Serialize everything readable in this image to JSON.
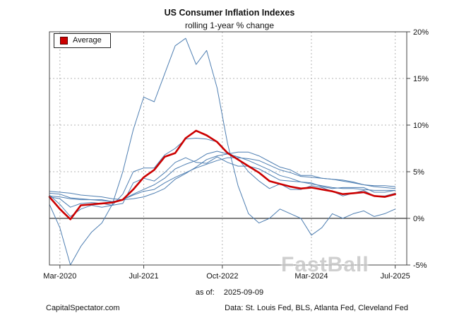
{
  "watermark": {
    "text": "FastBall"
  },
  "footer": {
    "as_of_label": "as of:",
    "as_of_date": "2025-09-09",
    "site": "CapitalSpectator.com",
    "source": "Data: St. Louis Fed, BLS, Atlanta Fed, Cleveland Fed"
  },
  "chart_data": {
    "type": "line",
    "title": "US Consumer Inflation Indexes",
    "subtitle": "rolling 1-year % change",
    "ylim": [
      -5,
      20
    ],
    "grid": true,
    "legend_position": "top-left",
    "legend": [
      {
        "label": "Average",
        "color": "#cc0000"
      }
    ],
    "colors": {
      "series_blue": "#4f7fb2",
      "average_red": "#cc0000",
      "grid": "#b4b4b4",
      "axis": "#444444",
      "zero_line": "#333333",
      "tick_text": "#111111"
    },
    "x": [
      "2020-01",
      "2020-03",
      "2020-05",
      "2020-07",
      "2020-09",
      "2020-11",
      "2021-01",
      "2021-03",
      "2021-05",
      "2021-07",
      "2021-09",
      "2021-11",
      "2022-01",
      "2022-03",
      "2022-05",
      "2022-07",
      "2022-09",
      "2022-11",
      "2023-01",
      "2023-03",
      "2023-05",
      "2023-07",
      "2023-09",
      "2023-11",
      "2024-01",
      "2024-03",
      "2024-05",
      "2024-07",
      "2024-09",
      "2024-11",
      "2025-01",
      "2025-03",
      "2025-05",
      "2025-07"
    ],
    "x_ticks": [
      {
        "label": "Mar-2020",
        "pos": 1
      },
      {
        "label": "Jul-2021",
        "pos": 9
      },
      {
        "label": "Oct-2022",
        "pos": 16.5
      },
      {
        "label": "Mar-2024",
        "pos": 25
      },
      {
        "label": "Jul-2025",
        "pos": 33
      }
    ],
    "y_ticks": [
      {
        "label": "20%",
        "value": 20
      },
      {
        "label": "15%",
        "value": 15
      },
      {
        "label": "10%",
        "value": 10
      },
      {
        "label": "5%",
        "value": 5
      },
      {
        "label": "0%",
        "value": 0
      },
      {
        "label": "-5%",
        "value": -5
      }
    ],
    "series": [
      {
        "name": "index-1",
        "emphasis": false,
        "values": [
          1.5,
          -1.0,
          -5.0,
          -3.0,
          -1.5,
          -0.5,
          1.5,
          5.0,
          9.5,
          13.0,
          12.5,
          15.5,
          18.5,
          19.3,
          16.5,
          18.0,
          14.0,
          8.0,
          3.5,
          0.5,
          -0.5,
          0.0,
          1.0,
          0.5,
          0.0,
          -1.8,
          -1.0,
          0.5,
          0.0,
          0.5,
          0.8,
          0.2,
          0.5,
          1.0
        ]
      },
      {
        "name": "index-2",
        "emphasis": false,
        "values": [
          2.5,
          1.5,
          0.2,
          1.0,
          1.4,
          1.2,
          1.4,
          2.6,
          5.0,
          5.4,
          5.4,
          6.8,
          7.5,
          8.5,
          8.6,
          8.5,
          8.2,
          7.1,
          6.4,
          5.0,
          4.0,
          3.2,
          3.7,
          3.1,
          3.1,
          3.5,
          3.3,
          2.9,
          2.4,
          2.7,
          3.0,
          2.4,
          2.4,
          2.7
        ]
      },
      {
        "name": "index-3",
        "emphasis": false,
        "values": [
          2.3,
          2.1,
          1.2,
          1.6,
          1.7,
          1.6,
          1.4,
          1.6,
          3.8,
          4.3,
          4.0,
          4.9,
          6.0,
          6.5,
          6.0,
          5.9,
          6.6,
          6.0,
          5.6,
          5.6,
          5.3,
          4.7,
          4.1,
          4.0,
          3.9,
          3.8,
          3.4,
          3.2,
          3.3,
          3.3,
          3.3,
          2.8,
          2.8,
          3.0
        ]
      },
      {
        "name": "index-4",
        "emphasis": false,
        "values": [
          2.9,
          2.8,
          2.7,
          2.5,
          2.4,
          2.3,
          2.1,
          2.0,
          2.1,
          2.3,
          2.7,
          3.2,
          4.2,
          4.8,
          5.5,
          6.3,
          6.7,
          6.9,
          7.1,
          7.1,
          6.7,
          6.1,
          5.5,
          5.2,
          4.6,
          4.6,
          4.3,
          4.2,
          4.1,
          3.9,
          3.6,
          3.5,
          3.5,
          3.4
        ]
      },
      {
        "name": "index-5",
        "emphasis": false,
        "values": [
          2.4,
          2.3,
          2.1,
          2.0,
          2.0,
          1.9,
          1.8,
          2.0,
          2.6,
          3.1,
          3.6,
          4.3,
          5.3,
          5.8,
          6.2,
          6.9,
          7.2,
          6.9,
          6.6,
          6.2,
          5.7,
          5.2,
          4.6,
          4.3,
          3.9,
          3.7,
          3.5,
          3.3,
          3.2,
          3.2,
          3.1,
          3.0,
          3.0,
          3.0
        ]
      },
      {
        "name": "index-6",
        "emphasis": false,
        "values": [
          2.7,
          2.6,
          2.2,
          2.1,
          2.0,
          2.0,
          1.8,
          2.0,
          2.5,
          2.9,
          3.1,
          3.8,
          4.4,
          4.9,
          5.4,
          5.8,
          6.2,
          6.5,
          6.5,
          6.4,
          6.2,
          5.7,
          5.2,
          4.9,
          4.5,
          4.4,
          4.3,
          4.2,
          4.0,
          3.8,
          3.6,
          3.4,
          3.3,
          3.2
        ]
      },
      {
        "name": "Average",
        "emphasis": true,
        "values": [
          2.3,
          1.0,
          -0.1,
          1.4,
          1.5,
          1.6,
          1.7,
          2.0,
          3.1,
          4.4,
          5.2,
          6.6,
          7.0,
          8.6,
          9.4,
          8.9,
          8.2,
          7.0,
          6.3,
          5.6,
          4.9,
          4.0,
          3.7,
          3.4,
          3.2,
          3.3,
          3.1,
          2.9,
          2.6,
          2.7,
          2.8,
          2.4,
          2.3,
          2.6
        ]
      }
    ]
  }
}
